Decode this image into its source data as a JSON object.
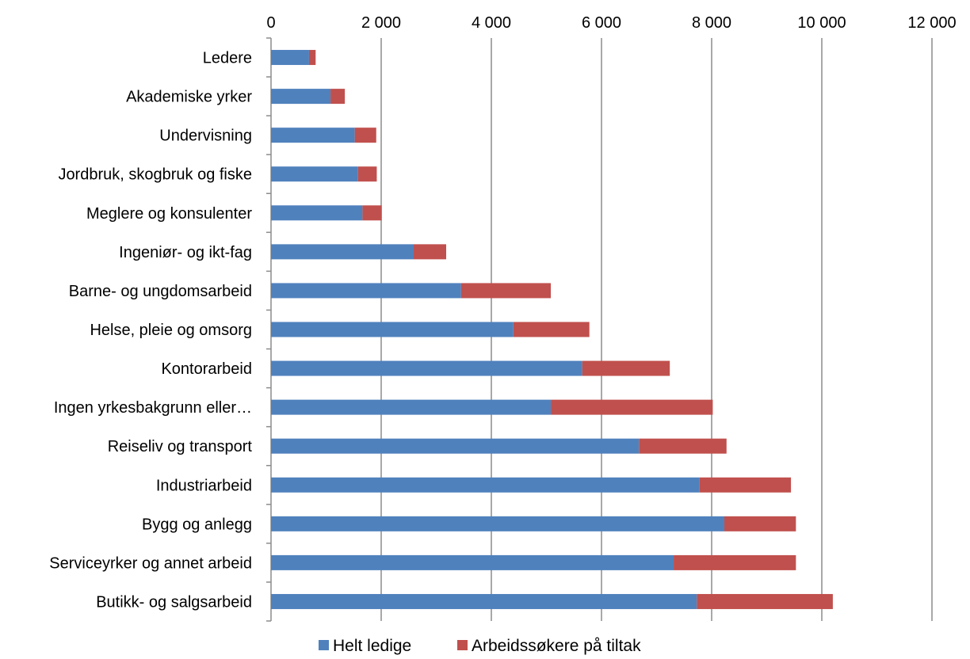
{
  "chart_data": {
    "type": "bar",
    "orientation": "horizontal",
    "stacked": true,
    "categories": [
      "Ledere",
      "Akademiske yrker",
      "Undervisning",
      "Jordbruk, skogbruk og fiske",
      "Meglere og konsulenter",
      "Ingeniør- og ikt-fag",
      "Barne- og ungdomsarbeid",
      "Helse, pleie og omsorg",
      "Kontorarbeid",
      "Ingen yrkesbakgrunn eller…",
      "Reiseliv og transport",
      "Industriarbeid",
      "Bygg og anlegg",
      "Serviceyrker og annet arbeid",
      "Butikk- og salgsarbeid"
    ],
    "series": [
      {
        "name": "Helt ledige",
        "color": "#4f81bd",
        "values": [
          690,
          1080,
          1520,
          1580,
          1660,
          2590,
          3450,
          4400,
          5650,
          5080,
          6680,
          7780,
          8230,
          7310,
          7730
        ]
      },
      {
        "name": "Arbeidssøkere på tiltak",
        "color": "#c0504d",
        "values": [
          120,
          260,
          390,
          340,
          350,
          590,
          1630,
          1380,
          1590,
          2940,
          1590,
          1660,
          1300,
          2220,
          2470
        ]
      }
    ],
    "xlim": [
      0,
      12000
    ],
    "x_ticks": [
      0,
      2000,
      4000,
      6000,
      8000,
      10000,
      12000
    ],
    "x_tick_labels": [
      "0",
      "2 000",
      "4 000",
      "6 000",
      "8 000",
      "10 000",
      "12 000"
    ],
    "x_axis_position": "top",
    "grid": true,
    "legend_position": "bottom"
  }
}
